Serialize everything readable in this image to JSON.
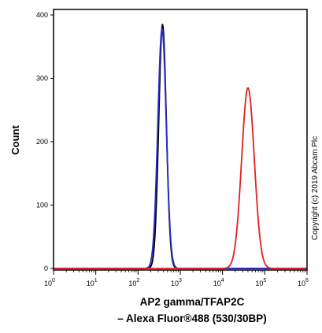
{
  "chart_data": {
    "type": "line",
    "xscale": "log",
    "xlim": [
      1,
      1000000
    ],
    "ylim": [
      0,
      400
    ],
    "xlabel_line1": "AP2 gamma/TFAP2C",
    "xlabel_line2": "– Alexa Fluor®488 (530/30BP)",
    "ylabel": "Count",
    "copyright": "Copyright (c) 2019 Abcam Plc",
    "y_ticks": [
      {
        "value": 0,
        "label": "0"
      },
      {
        "value": 100,
        "label": "100"
      },
      {
        "value": 200,
        "label": "200"
      },
      {
        "value": 300,
        "label": "300"
      },
      {
        "value": 400,
        "label": "400"
      }
    ],
    "x_ticks": [
      {
        "value": 1,
        "base": "10",
        "exp": "0"
      },
      {
        "value": 10,
        "base": "10",
        "exp": "1"
      },
      {
        "value": 100,
        "base": "10",
        "exp": "2"
      },
      {
        "value": 1000,
        "base": "10",
        "exp": "3"
      },
      {
        "value": 10000,
        "base": "10",
        "exp": "4"
      },
      {
        "value": 100000,
        "base": "10",
        "exp": "5"
      },
      {
        "value": 1000000,
        "base": "10",
        "exp": "6"
      }
    ],
    "grid": false,
    "series": [
      {
        "color": "#000000",
        "peak_x": 380,
        "peak_y": 385,
        "spread_decades": 0.09,
        "x": [
          1,
          150,
          200,
          250,
          300,
          340,
          370,
          380,
          390,
          420,
          470,
          550,
          650,
          800,
          1000,
          1000000
        ],
        "y": [
          0,
          0,
          6,
          60,
          220,
          340,
          380,
          385,
          380,
          330,
          200,
          60,
          10,
          2,
          0,
          0
        ]
      },
      {
        "color": "#2a2acc",
        "peak_x": 370,
        "peak_y": 378,
        "spread_decades": 0.1,
        "x": [
          1,
          150,
          200,
          250,
          300,
          340,
          370,
          400,
          450,
          550,
          650,
          800,
          1000,
          1000000
        ],
        "y": [
          0,
          0,
          8,
          70,
          230,
          340,
          378,
          360,
          260,
          70,
          15,
          3,
          0,
          0
        ]
      },
      {
        "color": "#e02020",
        "peak_x": 40000,
        "peak_y": 285,
        "spread_decades": 0.15,
        "x": [
          1,
          12000,
          15000,
          20000,
          25000,
          30000,
          35000,
          40000,
          45000,
          50000,
          60000,
          70000,
          80000,
          100000,
          120000,
          1000000
        ],
        "y": [
          0,
          0,
          10,
          60,
          150,
          240,
          278,
          285,
          282,
          270,
          215,
          150,
          80,
          20,
          3,
          0
        ]
      }
    ]
  }
}
